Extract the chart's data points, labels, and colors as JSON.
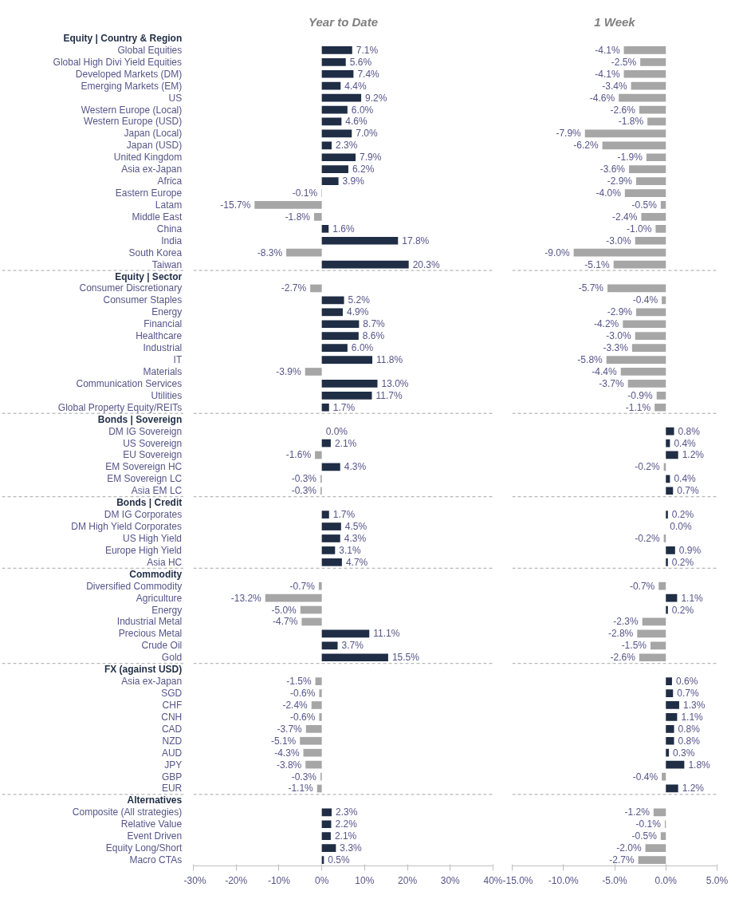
{
  "chart_data": [
    {
      "type": "bar",
      "orientation": "horizontal",
      "title": "Year to Date",
      "categories": [
        "Equity | Country & Region",
        "Global Equities",
        "Global High Divi Yield Equities",
        "Developed Markets (DM)",
        "Emerging Markets (EM)",
        "US",
        "Western Europe (Local)",
        "Western Europe (USD)",
        "Japan (Local)",
        "Japan (USD)",
        "United Kingdom",
        "Asia ex-Japan",
        "Africa",
        "Eastern Europe",
        "Latam",
        "Middle East",
        "China",
        "India",
        "South Korea",
        "Taiwan",
        "Equity | Sector",
        "Consumer Discretionary",
        "Consumer Staples",
        "Energy",
        "Financial",
        "Healthcare",
        "Industrial",
        "IT",
        "Materials",
        "Communication Services",
        "Utilities",
        "Global Property Equity/REITs",
        "Bonds | Sovereign",
        "DM IG Sovereign",
        "US Sovereign",
        "EU Sovereign",
        "EM Sovereign HC",
        "EM Sovereign LC",
        "Asia EM LC",
        "Bonds | Credit",
        "DM IG Corporates",
        "DM High Yield Corporates",
        "US High Yield",
        "Europe High Yield",
        "Asia HC",
        "Commodity",
        "Diversified Commodity",
        "Agriculture",
        "Energy",
        "Industrial Metal",
        "Precious Metal",
        "Crude Oil",
        "Gold",
        "FX (against USD)",
        "Asia ex-Japan",
        "SGD",
        "CHF",
        "CNH",
        "CAD",
        "NZD",
        "AUD",
        "JPY",
        "GBP",
        "EUR",
        "Alternatives",
        "Composite (All strategies)",
        "Relative Value",
        "Event Driven",
        "Equity Long/Short",
        "Macro CTAs"
      ],
      "values": [
        null,
        7.1,
        5.6,
        7.4,
        4.4,
        9.2,
        6.0,
        4.6,
        7.0,
        2.3,
        7.9,
        6.2,
        3.9,
        -0.1,
        -15.7,
        -1.8,
        1.6,
        17.8,
        -8.3,
        20.3,
        null,
        -2.7,
        5.2,
        4.9,
        8.7,
        8.6,
        6.0,
        11.8,
        -3.9,
        13.0,
        11.7,
        1.7,
        null,
        0.0,
        2.1,
        -1.6,
        4.3,
        -0.3,
        -0.3,
        null,
        1.7,
        4.5,
        4.3,
        3.1,
        4.7,
        null,
        -0.7,
        -13.2,
        -5.0,
        -4.7,
        11.1,
        3.7,
        15.5,
        null,
        -1.5,
        -0.6,
        -2.4,
        -0.6,
        -3.7,
        -5.1,
        -4.3,
        -3.8,
        -0.3,
        -1.1,
        null,
        2.3,
        2.2,
        2.1,
        3.3,
        0.5
      ],
      "value_labels": [
        null,
        "7.1%",
        "5.6%",
        "7.4%",
        "4.4%",
        "9.2%",
        "6.0%",
        "4.6%",
        "7.0%",
        "2.3%",
        "7.9%",
        "6.2%",
        "3.9%",
        "-0.1%",
        "-15.7%",
        "-1.8%",
        "1.6%",
        "17.8%",
        "-8.3%",
        "20.3%",
        null,
        "-2.7%",
        "5.2%",
        "4.9%",
        "8.7%",
        "8.6%",
        "6.0%",
        "11.8%",
        "-3.9%",
        "13.0%",
        "11.7%",
        "1.7%",
        null,
        "0.0%",
        "2.1%",
        "-1.6%",
        "4.3%",
        "-0.3%",
        "-0.3%",
        null,
        "1.7%",
        "4.5%",
        "4.3%",
        "3.1%",
        "4.7%",
        null,
        "-0.7%",
        "-13.2%",
        "-5.0%",
        "-4.7%",
        "11.1%",
        "3.7%",
        "15.5%",
        null,
        "-1.5%",
        "-0.6%",
        "-2.4%",
        "-0.6%",
        "-3.7%",
        "-5.1%",
        "-4.3%",
        "-3.8%",
        "-0.3%",
        "-1.1%",
        null,
        "2.3%",
        "2.2%",
        "2.1%",
        "3.3%",
        "0.5%"
      ],
      "colors": [
        null,
        "#1f2d45",
        "#1f2d45",
        "#1f2d45",
        "#1f2d45",
        "#1f2d45",
        "#1f2d45",
        "#1f2d45",
        "#1f2d45",
        "#1f2d45",
        "#1f2d45",
        "#1f2d45",
        "#1f2d45",
        "#a6a6a6",
        "#a6a6a6",
        "#a6a6a6",
        "#1f2d45",
        "#1f2d45",
        "#a6a6a6",
        "#1f2d45",
        null,
        "#a6a6a6",
        "#1f2d45",
        "#1f2d45",
        "#1f2d45",
        "#1f2d45",
        "#1f2d45",
        "#1f2d45",
        "#a6a6a6",
        "#1f2d45",
        "#1f2d45",
        "#1f2d45",
        null,
        "#1f2d45",
        "#1f2d45",
        "#a6a6a6",
        "#1f2d45",
        "#a6a6a6",
        "#a6a6a6",
        null,
        "#1f2d45",
        "#1f2d45",
        "#1f2d45",
        "#1f2d45",
        "#1f2d45",
        null,
        "#a6a6a6",
        "#a6a6a6",
        "#a6a6a6",
        "#a6a6a6",
        "#1f2d45",
        "#1f2d45",
        "#1f2d45",
        null,
        "#a6a6a6",
        "#a6a6a6",
        "#a6a6a6",
        "#a6a6a6",
        "#a6a6a6",
        "#a6a6a6",
        "#a6a6a6",
        "#a6a6a6",
        "#a6a6a6",
        "#a6a6a6",
        null,
        "#1f2d45",
        "#1f2d45",
        "#1f2d45",
        "#1f2d45",
        "#1f2d45"
      ],
      "xlim": [
        -30,
        40
      ],
      "xticks": [
        {
          "value": -30,
          "label": "-30%"
        },
        {
          "value": -20,
          "label": "-20%"
        },
        {
          "value": -10,
          "label": "-10%"
        },
        {
          "value": 0,
          "label": "0%"
        },
        {
          "value": 10,
          "label": "10%"
        },
        {
          "value": 20,
          "label": "20%"
        },
        {
          "value": 30,
          "label": "30%"
        },
        {
          "value": 40,
          "label": "40%"
        }
      ]
    },
    {
      "type": "bar",
      "orientation": "horizontal",
      "title": "1 Week",
      "tick_labels": "x",
      "categories": [
        null,
        null,
        null,
        null,
        null,
        null,
        null,
        null,
        null,
        null,
        null,
        null,
        null,
        null,
        null,
        null,
        null,
        null,
        null,
        null,
        null,
        null,
        null,
        null,
        null,
        null,
        null,
        null,
        null,
        null,
        null,
        null,
        null,
        null,
        null,
        null,
        null,
        null,
        null,
        null,
        null,
        null,
        null,
        null,
        null,
        null,
        null,
        null,
        null,
        null,
        null,
        null,
        null,
        null,
        null,
        null,
        null,
        null,
        null,
        null,
        null,
        null,
        null,
        null,
        null,
        null,
        null,
        null,
        null,
        null
      ],
      "values": [
        null,
        -4.1,
        -2.5,
        -4.1,
        -3.4,
        -4.6,
        -2.6,
        -1.8,
        -7.9,
        -6.2,
        -1.9,
        -3.6,
        -2.9,
        -4.0,
        -0.5,
        -2.4,
        -1.0,
        -3.0,
        -9.0,
        -5.1,
        null,
        -5.7,
        -0.4,
        -2.9,
        -4.2,
        -3.0,
        -3.3,
        -5.8,
        -4.4,
        -3.7,
        -0.9,
        -1.1,
        null,
        0.8,
        0.4,
        1.2,
        -0.2,
        0.4,
        0.7,
        null,
        0.2,
        0.0,
        -0.2,
        0.9,
        0.2,
        null,
        -0.7,
        1.1,
        0.2,
        -2.3,
        -2.8,
        -1.5,
        -2.6,
        null,
        0.6,
        0.7,
        1.3,
        1.1,
        0.8,
        0.8,
        0.3,
        1.8,
        -0.4,
        1.2,
        null,
        -1.2,
        -0.1,
        -0.5,
        -2.0,
        -2.7
      ],
      "value_labels": [
        null,
        "-4.1%",
        "-2.5%",
        "-4.1%",
        "-3.4%",
        "-4.6%",
        "-2.6%",
        "-1.8%",
        "-7.9%",
        "-6.2%",
        "-1.9%",
        "-3.6%",
        "-2.9%",
        "-4.0%",
        "-0.5%",
        "-2.4%",
        "-1.0%",
        "-3.0%",
        "-9.0%",
        "-5.1%",
        null,
        "-5.7%",
        "-0.4%",
        "-2.9%",
        "-4.2%",
        "-3.0%",
        "-3.3%",
        "-5.8%",
        "-4.4%",
        "-3.7%",
        "-0.9%",
        "-1.1%",
        null,
        "0.8%",
        "0.4%",
        "1.2%",
        "-0.2%",
        "0.4%",
        "0.7%",
        null,
        "0.2%",
        "0.0%",
        "-0.2%",
        "0.9%",
        "0.2%",
        null,
        "-0.7%",
        "1.1%",
        "0.2%",
        "-2.3%",
        "-2.8%",
        "-1.5%",
        "-2.6%",
        null,
        "0.6%",
        "0.7%",
        "1.3%",
        "1.1%",
        "0.8%",
        "0.8%",
        "0.3%",
        "1.8%",
        "-0.4%",
        "1.2%",
        null,
        "-1.2%",
        "-0.1%",
        "-0.5%",
        "-2.0%",
        "-2.7%"
      ],
      "colors": [
        null,
        "#a6a6a6",
        "#a6a6a6",
        "#a6a6a6",
        "#a6a6a6",
        "#a6a6a6",
        "#a6a6a6",
        "#a6a6a6",
        "#a6a6a6",
        "#a6a6a6",
        "#a6a6a6",
        "#a6a6a6",
        "#a6a6a6",
        "#a6a6a6",
        "#a6a6a6",
        "#a6a6a6",
        "#a6a6a6",
        "#a6a6a6",
        "#a6a6a6",
        "#a6a6a6",
        null,
        "#a6a6a6",
        "#a6a6a6",
        "#a6a6a6",
        "#a6a6a6",
        "#a6a6a6",
        "#a6a6a6",
        "#a6a6a6",
        "#a6a6a6",
        "#a6a6a6",
        "#a6a6a6",
        "#a6a6a6",
        null,
        "#1f2d45",
        "#1f2d45",
        "#1f2d45",
        "#a6a6a6",
        "#1f2d45",
        "#1f2d45",
        null,
        "#1f2d45",
        "#1f2d45",
        "#a6a6a6",
        "#1f2d45",
        "#1f2d45",
        null,
        "#a6a6a6",
        "#1f2d45",
        "#1f2d45",
        "#a6a6a6",
        "#a6a6a6",
        "#a6a6a6",
        "#a6a6a6",
        null,
        "#1f2d45",
        "#1f2d45",
        "#1f2d45",
        "#1f2d45",
        "#1f2d45",
        "#1f2d45",
        "#1f2d45",
        "#1f2d45",
        "#a6a6a6",
        "#1f2d45",
        null,
        "#a6a6a6",
        "#a6a6a6",
        "#a6a6a6",
        "#a6a6a6",
        "#a6a6a6"
      ],
      "xlim": [
        -15,
        5
      ],
      "xticks": [
        {
          "value": -15,
          "label": "-15.0%"
        },
        {
          "value": -10,
          "label": "-10.0%"
        },
        {
          "value": -5,
          "label": "-5.0%"
        },
        {
          "value": 0,
          "label": "0.0%"
        },
        {
          "value": 5,
          "label": "5.0%"
        }
      ]
    }
  ]
}
